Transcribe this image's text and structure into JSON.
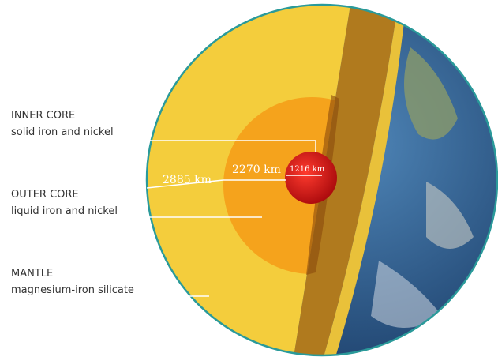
{
  "labels": [
    {
      "title": "INNER CORE",
      "subtitle": "solid iron and nickel"
    },
    {
      "title": "OUTER CORE",
      "subtitle": "liquid iron and nickel"
    },
    {
      "title": "MANTLE",
      "subtitle": "magnesium-iron silicate"
    }
  ],
  "measurements": [
    "2885 km",
    "2270 km",
    "1216 km"
  ]
}
